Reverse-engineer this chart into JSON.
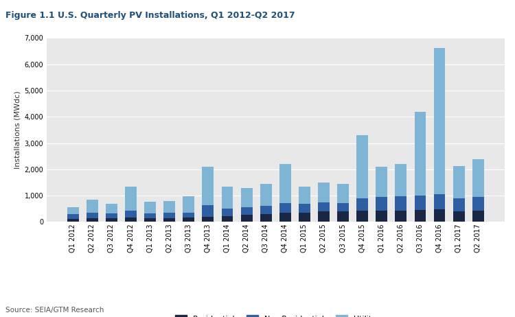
{
  "title": "Figure 1.1 U.S. Quarterly PV Installations, Q1 2012-Q2 2017",
  "ylabel": "Installations (MWdc)",
  "source": "Source: SEIA/GTM Research",
  "categories": [
    "Q1 2012",
    "Q2 2012",
    "Q3 2012",
    "Q4 2012",
    "Q1 2013",
    "Q2 2013",
    "Q3 2013",
    "Q4 2013",
    "Q1 2014",
    "Q2 2014",
    "Q3 2014",
    "Q4 2014",
    "Q1 2015",
    "Q2 2015",
    "Q3 2015",
    "Q4 2015",
    "Q1 2016",
    "Q2 2016",
    "Q3 2016",
    "Q4 2016",
    "Q1 2017",
    "Q2 2017"
  ],
  "residential": [
    120,
    130,
    130,
    160,
    140,
    145,
    155,
    200,
    230,
    280,
    290,
    340,
    360,
    390,
    400,
    420,
    430,
    440,
    450,
    480,
    410,
    430
  ],
  "non_residential": [
    170,
    230,
    190,
    270,
    180,
    195,
    200,
    430,
    280,
    290,
    310,
    380,
    330,
    355,
    310,
    490,
    520,
    530,
    560,
    580,
    490,
    530
  ],
  "utility": [
    270,
    490,
    380,
    900,
    450,
    450,
    620,
    1480,
    830,
    730,
    840,
    1480,
    660,
    750,
    730,
    2400,
    1150,
    1230,
    3190,
    5550,
    1220,
    1440
  ],
  "color_residential": "#1a2744",
  "color_non_residential": "#2e5fa3",
  "color_utility": "#7eb4d4",
  "ylim": [
    0,
    7000
  ],
  "yticks": [
    0,
    1000,
    2000,
    3000,
    4000,
    5000,
    6000,
    7000
  ],
  "plot_bg": "#e8e8e8",
  "fig_bg": "#ffffff",
  "title_color": "#1f4e79",
  "bar_width": 0.6,
  "grid_color": "#ffffff",
  "tick_label_fontsize": 7.0,
  "ylabel_fontsize": 8.0,
  "title_fontsize": 9.0,
  "legend_fontsize": 8.0,
  "source_fontsize": 7.5
}
